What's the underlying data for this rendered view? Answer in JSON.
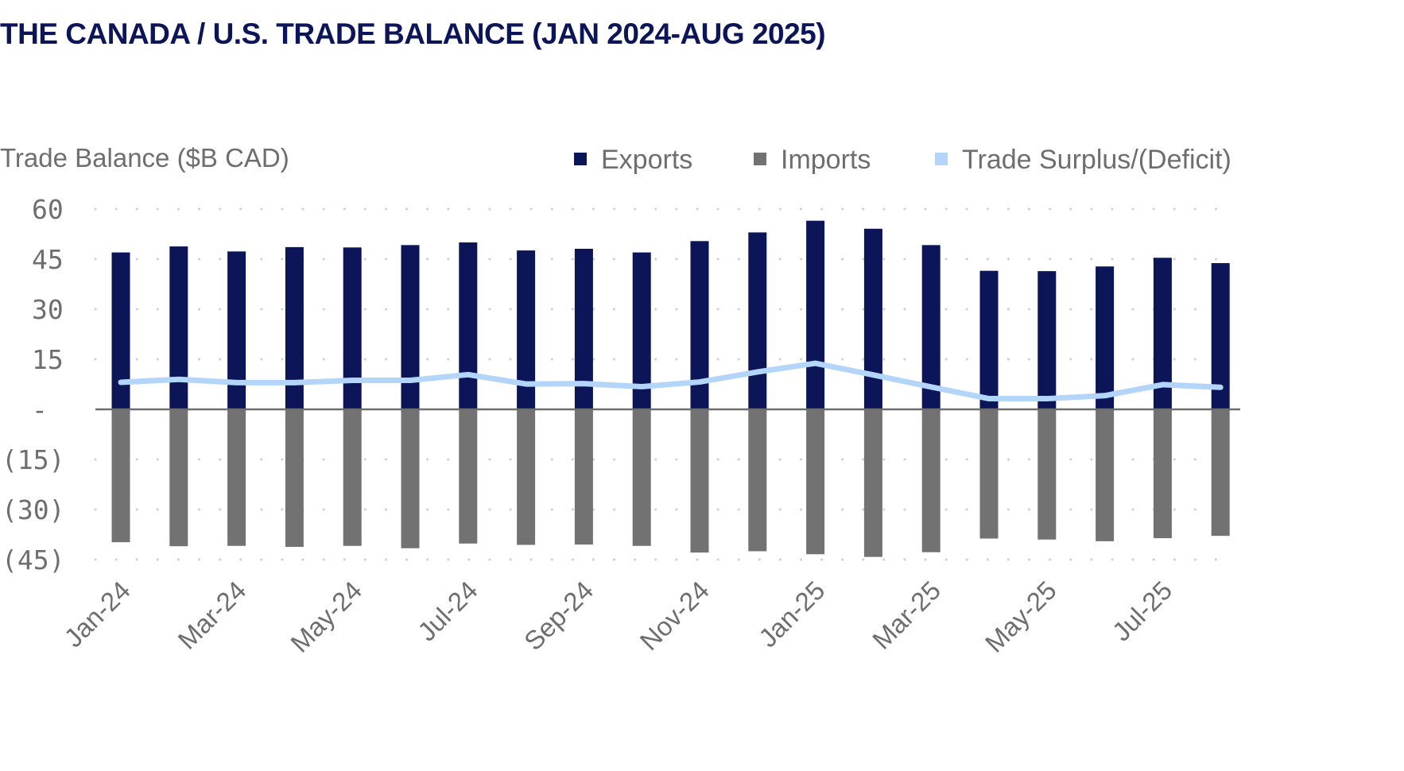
{
  "chart_data": {
    "type": "bar",
    "title": "THE CANADA / U.S. TRADE BALANCE (JAN 2024-AUG 2025)",
    "ylabel": "Trade Balance ($B CAD)",
    "xlabel": "",
    "ylim": [
      -45,
      60
    ],
    "y_ticks": [
      {
        "value": 60,
        "label": "60"
      },
      {
        "value": 45,
        "label": "45"
      },
      {
        "value": 30,
        "label": "30"
      },
      {
        "value": 15,
        "label": "15"
      },
      {
        "value": 0,
        "label": "-"
      },
      {
        "value": -15,
        "label": "(15)"
      },
      {
        "value": -30,
        "label": "(30)"
      },
      {
        "value": -45,
        "label": "(45)"
      }
    ],
    "grid": "dotted horizontal",
    "legend_position": "top-right",
    "categories": [
      "Jan-24",
      "Feb-24",
      "Mar-24",
      "Apr-24",
      "May-24",
      "Jun-24",
      "Jul-24",
      "Aug-24",
      "Sep-24",
      "Oct-24",
      "Nov-24",
      "Dec-24",
      "Jan-25",
      "Feb-25",
      "Mar-25",
      "Apr-25",
      "May-25",
      "Jun-25",
      "Jul-25",
      "Aug-25"
    ],
    "x_tick_labels": [
      "Jan-24",
      "Mar-24",
      "May-24",
      "Jul-24",
      "Sep-24",
      "Nov-24",
      "Jan-25",
      "Mar-25",
      "May-25",
      "Jul-25"
    ],
    "series": [
      {
        "name": "Exports",
        "type": "bar",
        "color": "#0b1557",
        "values": [
          47.0,
          48.8,
          47.3,
          48.6,
          48.5,
          49.2,
          50.0,
          47.6,
          48.1,
          47.0,
          50.4,
          53.0,
          56.5,
          54.1,
          49.2,
          41.5,
          41.4,
          42.8,
          45.4,
          43.8
        ]
      },
      {
        "name": "Imports",
        "type": "bar",
        "color": "#727272",
        "values": [
          -39.8,
          -41.0,
          -40.9,
          -41.2,
          -40.9,
          -41.6,
          -40.2,
          -40.6,
          -40.5,
          -40.9,
          -42.9,
          -42.5,
          -43.4,
          -44.2,
          -42.8,
          -38.7,
          -39.0,
          -39.5,
          -38.6,
          -37.9
        ]
      },
      {
        "name": "Trade Surplus/(Deficit)",
        "type": "line",
        "color": "#b3d5fa",
        "values": [
          8.1,
          9.0,
          8.0,
          8.0,
          8.7,
          8.7,
          10.4,
          7.6,
          7.7,
          6.8,
          8.2,
          11.2,
          13.8,
          10.3,
          6.7,
          3.2,
          3.2,
          4.1,
          7.4,
          6.6
        ]
      }
    ]
  },
  "colors": {
    "title": "#0b1557",
    "axis_text": "#6e6e6e",
    "grid": "#cfcfcf",
    "zero_line": "#6e6e6e"
  }
}
